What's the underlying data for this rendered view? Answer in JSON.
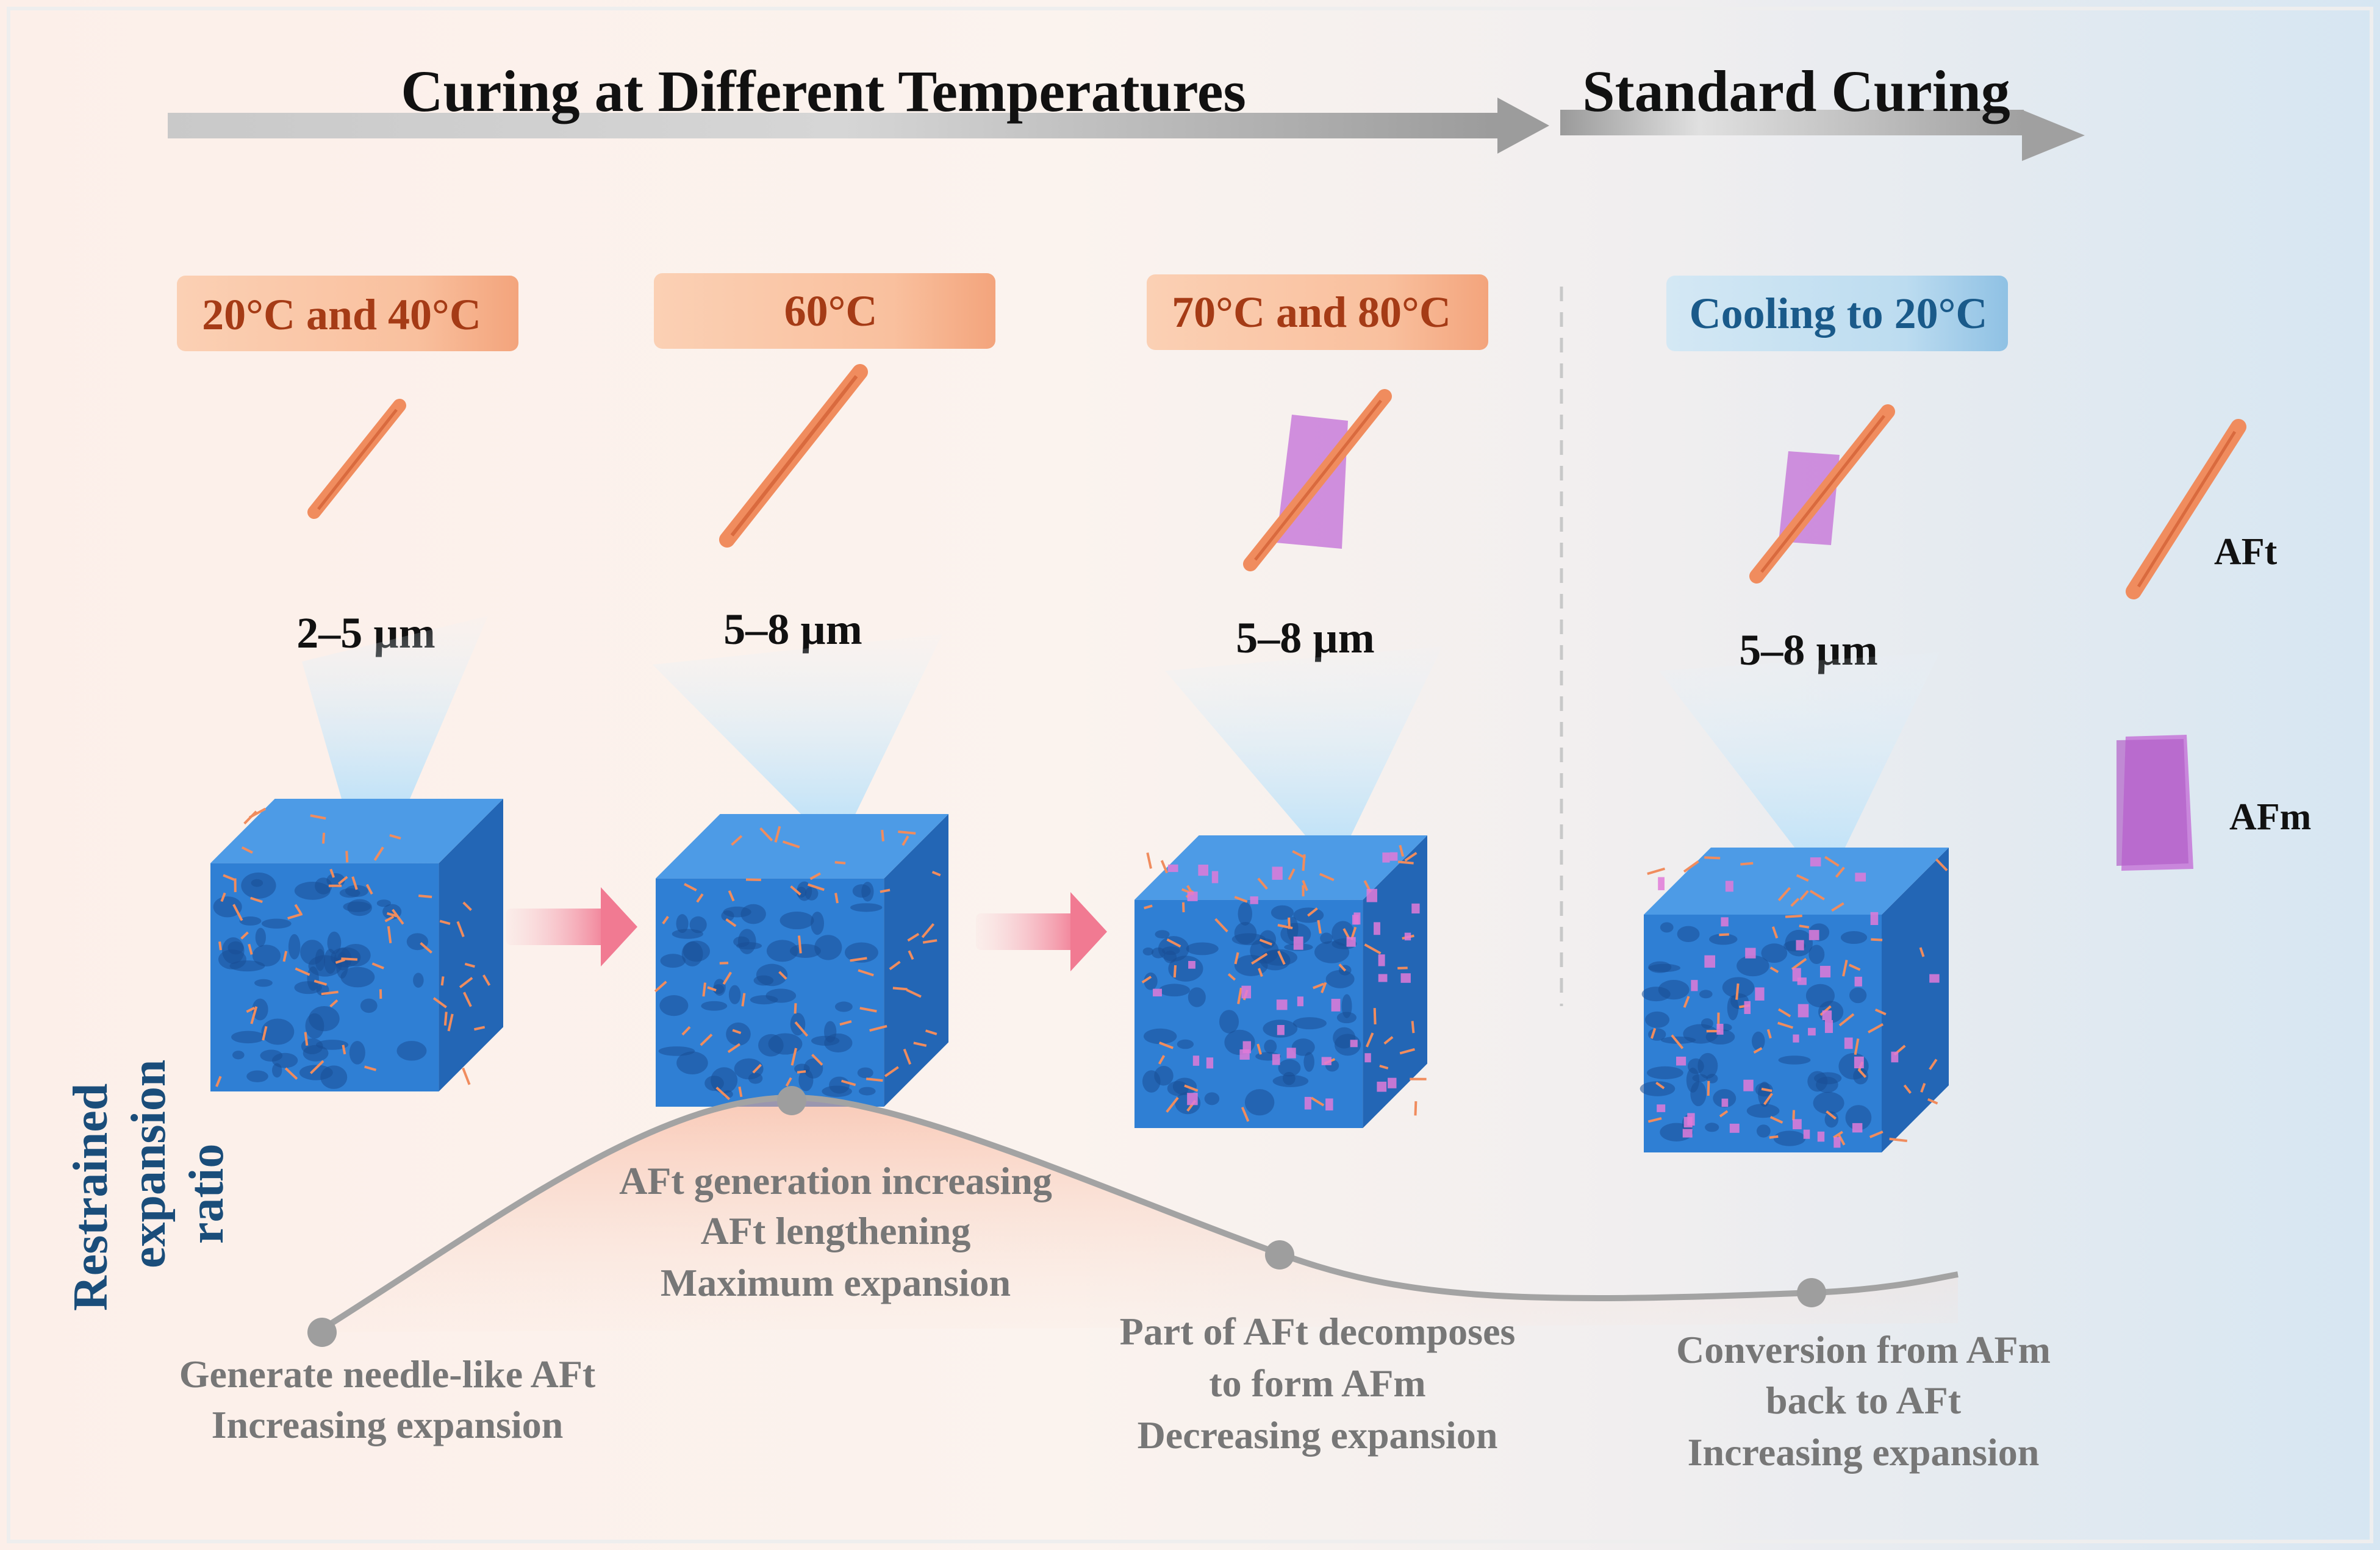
{
  "header": {
    "left_title": "Curing at Different Temperatures",
    "right_title": "Standard Curing"
  },
  "stages": [
    {
      "label": "20°C and 40°C",
      "size": "2–5 µm"
    },
    {
      "label": "60°C",
      "size": "5–8 µm"
    },
    {
      "label": "70°C and 80°C",
      "size": "5–8 µm"
    },
    {
      "label": "Cooling to 20°C",
      "size": "5–8 µm"
    }
  ],
  "legend": {
    "aft": "AFt",
    "afm": "AFm"
  },
  "yaxis": {
    "label_line1": "Restrained",
    "label_line2": "expansion",
    "label_line3": "ratio"
  },
  "curve_notes": [
    {
      "line1": "Generate needle-like AFt",
      "line2": "Increasing expansion",
      "line3": ""
    },
    {
      "line1": "AFt generation increasing",
      "line2": "AFt lengthening",
      "line3": "Maximum expansion"
    },
    {
      "line1": "Part of AFt decomposes",
      "line2": "to form AFm",
      "line3": "Decreasing expansion"
    },
    {
      "line1": "Conversion from AFm",
      "line2": "back to AFt",
      "line3": "Increasing expansion"
    }
  ],
  "colors": {
    "aft": "#f08c5e",
    "afm": "#c576d8",
    "cube": "#2f7fd4",
    "warm_label_bg": "#f9c4a4",
    "warm_label_text": "#a53b16",
    "cool_label_bg": "#bcdcf0",
    "cool_label_text": "#1a5a8a",
    "curve": "#a3a3a3",
    "note_text": "#777777",
    "axis_text": "#1a4d7a"
  }
}
